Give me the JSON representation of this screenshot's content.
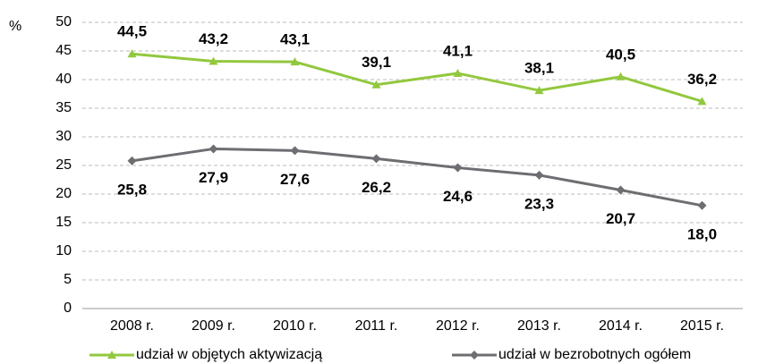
{
  "chart_data": {
    "type": "line",
    "y_label": "%",
    "categories": [
      "2008 r.",
      "2009 r.",
      "2010 r.",
      "2011 r.",
      "2012 r.",
      "2013 r.",
      "2014 r.",
      "2015 r."
    ],
    "series": [
      {
        "name": "udział w objętych aktywizacją",
        "color": "#92c83e",
        "marker": "triangle",
        "values": [
          44.5,
          43.2,
          43.1,
          39.1,
          41.1,
          38.1,
          40.5,
          36.2
        ],
        "value_labels": [
          "44,5",
          "43,2",
          "43,1",
          "39,1",
          "41,1",
          "38,1",
          "40,5",
          "36,2"
        ]
      },
      {
        "name": "udział w bezrobotnych ogółem",
        "color": "#6d6e71",
        "marker": "diamond",
        "values": [
          25.8,
          27.9,
          27.6,
          26.2,
          24.6,
          23.3,
          20.7,
          18.0
        ],
        "value_labels": [
          "25,8",
          "27,9",
          "27,6",
          "26,2",
          "24,6",
          "23,3",
          "20,7",
          "18,0"
        ]
      }
    ],
    "ylim": [
      0,
      50
    ],
    "yticks": [
      0,
      5,
      10,
      15,
      20,
      25,
      30,
      35,
      40,
      45,
      50
    ],
    "grid": true
  }
}
